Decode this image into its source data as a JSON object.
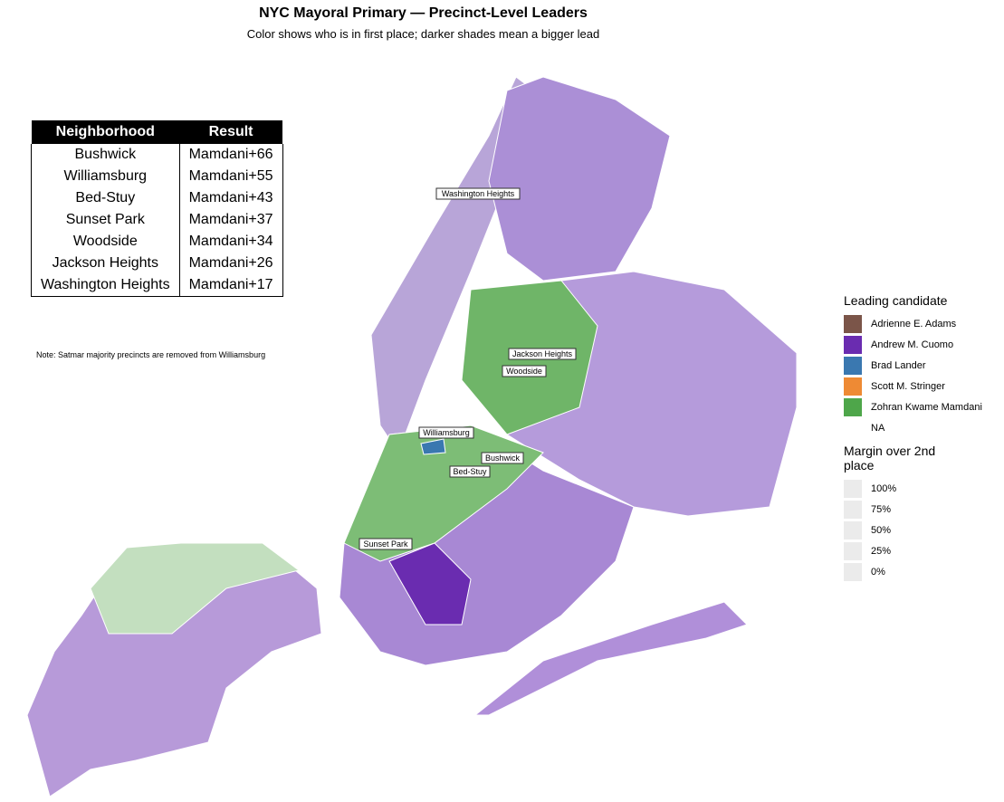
{
  "title": "NYC Mayoral Primary — Precinct-Level Leaders",
  "subtitle": "Color shows who is in first place; darker shades mean a bigger lead",
  "table": {
    "header": [
      "Neighborhood",
      "Result"
    ],
    "rows": [
      [
        "Bushwick",
        "Mamdani+66"
      ],
      [
        "Williamsburg",
        "Mamdani+55"
      ],
      [
        "Bed-Stuy",
        "Mamdani+43"
      ],
      [
        "Sunset Park",
        "Mamdani+37"
      ],
      [
        "Woodside",
        "Mamdani+34"
      ],
      [
        "Jackson Heights",
        "Mamdani+26"
      ],
      [
        "Washington Heights",
        "Mamdani+17"
      ]
    ]
  },
  "note": "Note: Satmar majority precincts are removed from Williamsburg",
  "map_labels": [
    "Washington Heights",
    "Jackson Heights",
    "Woodside",
    "Williamsburg",
    "Bushwick",
    "Bed-Stuy",
    "Sunset Park"
  ],
  "legend": {
    "title": "Leading candidate",
    "items": [
      {
        "name": "Adrienne E. Adams",
        "color": "#7b5549"
      },
      {
        "name": "Andrew M. Cuomo",
        "color": "#6a2cb0"
      },
      {
        "name": "Brad Lander",
        "color": "#3a78b0"
      },
      {
        "name": "Scott M. Stringer",
        "color": "#ee8a34"
      },
      {
        "name": "Zohran Kwame Mamdani",
        "color": "#4ea64a"
      },
      {
        "name": "NA"
      }
    ],
    "margin_title": "Margin over 2nd place",
    "margin_items": [
      "100%",
      "75%",
      "50%",
      "25%",
      "0%"
    ]
  }
}
